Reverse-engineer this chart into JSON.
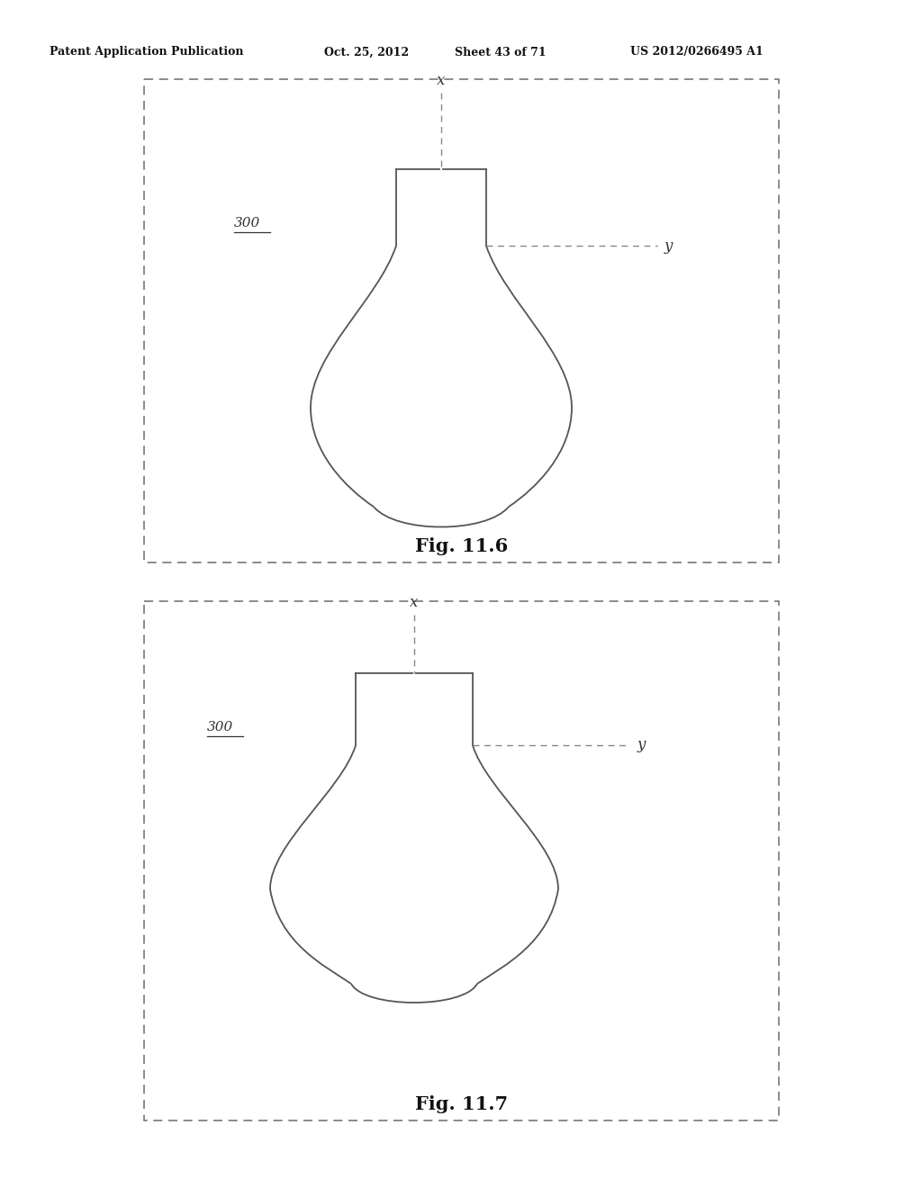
{
  "bg_color": "#ffffff",
  "header_text": "Patent Application Publication",
  "header_date": "Oct. 25, 2012",
  "header_sheet": "Sheet 43 of 71",
  "header_patent": "US 2012/0266495 A1",
  "fig1_label": "Fig. 11.6",
  "fig2_label": "Fig. 11.7",
  "ref_label": "300",
  "x_label": "x",
  "y_label": "y",
  "line_color": "#555555",
  "dashed_line_color": "#888888",
  "border_color": "#777777",
  "text_color": "#333333"
}
